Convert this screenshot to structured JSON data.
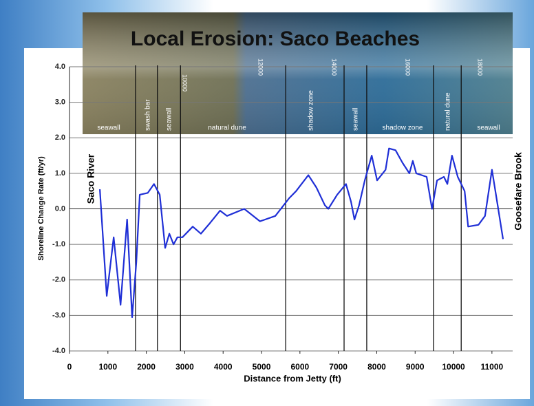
{
  "chart_data": {
    "type": "line",
    "title": "Local Erosion: Saco Beaches",
    "x_label": "Distance from Jetty (ft)",
    "y_label": "Shoreline Change Rate (ft/yr)",
    "xlim": [
      0,
      11540
    ],
    "ylim": [
      -4,
      4
    ],
    "xticks": [
      0,
      1000,
      2000,
      3000,
      4000,
      5000,
      6000,
      7000,
      8000,
      9000,
      10000,
      11000
    ],
    "yticks": [
      {
        "value": -4,
        "label": "-4.0"
      },
      {
        "value": -3,
        "label": "-3.0"
      },
      {
        "value": -2,
        "label": "-2.0"
      },
      {
        "value": -1,
        "label": "-1.0"
      },
      {
        "value": 0,
        "label": "0.0"
      },
      {
        "value": 1,
        "label": "1.0"
      },
      {
        "value": 2,
        "label": "2.0"
      },
      {
        "value": 3,
        "label": "3.0"
      },
      {
        "value": 4,
        "label": "4.0"
      }
    ],
    "grid": true,
    "series": [
      {
        "color": "#1f2fd6",
        "x": [
          790,
          970,
          1150,
          1330,
          1500,
          1630,
          1740,
          1830,
          2040,
          2200,
          2350,
          2490,
          2600,
          2710,
          2810,
          2940,
          3210,
          3420,
          3660,
          3920,
          4100,
          4550,
          4960,
          5360,
          5720,
          5900,
          6220,
          6430,
          6650,
          6740,
          6970,
          7200,
          7330,
          7420,
          7540,
          7690,
          7870,
          8010,
          8230,
          8320,
          8490,
          8670,
          8850,
          8940,
          9030,
          9300,
          9440,
          9570,
          9750,
          9840,
          9960,
          10110,
          10290,
          10380,
          10650,
          10820,
          11000,
          11150,
          11290
        ],
        "values": [
          0.55,
          -2.45,
          -0.8,
          -2.7,
          -0.3,
          -3.05,
          -1.5,
          0.4,
          0.45,
          0.7,
          0.4,
          -1.1,
          -0.7,
          -1.0,
          -0.8,
          -0.8,
          -0.5,
          -0.7,
          -0.4,
          -0.05,
          -0.2,
          0.0,
          -0.35,
          -0.2,
          0.3,
          0.5,
          0.95,
          0.6,
          0.1,
          0.0,
          0.4,
          0.7,
          0.2,
          -0.3,
          0.1,
          0.8,
          1.5,
          0.8,
          1.1,
          1.7,
          1.65,
          1.3,
          1.0,
          1.35,
          1.0,
          0.9,
          0.0,
          0.8,
          0.9,
          0.7,
          1.5,
          0.9,
          0.5,
          -0.5,
          -0.45,
          -0.2,
          1.1,
          0.1,
          -0.85
        ]
      }
    ],
    "boundaries": [
      1720,
      2290,
      2890,
      5630,
      7150,
      7740,
      9480,
      10200
    ],
    "zones": [
      "seawall",
      "swash bar",
      "seawall",
      "natural dune",
      "shadow zone",
      "seawall",
      "shadow zone",
      "natural dune",
      "seawall"
    ],
    "side_labels": [
      "Saco River",
      "Goosefare Brook"
    ],
    "photo_marks": [
      "10000",
      "12000",
      "14000",
      "16000",
      "18000"
    ]
  }
}
